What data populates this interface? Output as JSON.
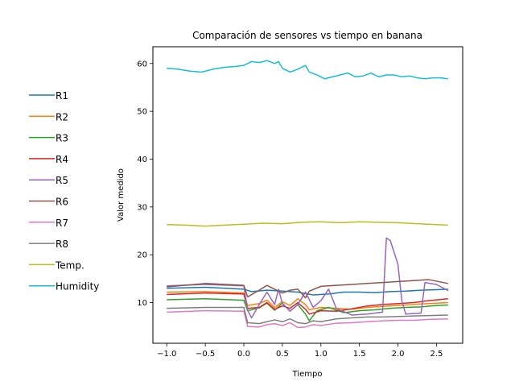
{
  "chart_data": {
    "type": "line",
    "title": "Comparación de sensores vs tiempo en banana",
    "xlabel": "Tiempo",
    "ylabel": "Valor medido",
    "xlim": [
      -1.18,
      2.84
    ],
    "ylim": [
      1.5,
      63.5
    ],
    "xticks": [
      -1.0,
      -0.5,
      0.0,
      0.5,
      1.0,
      1.5,
      2.0,
      2.5
    ],
    "xtick_labels": [
      "−1.0",
      "−0.5",
      "0.0",
      "0.5",
      "1.0",
      "1.5",
      "2.0",
      "2.5"
    ],
    "yticks": [
      10,
      20,
      30,
      40,
      50,
      60
    ],
    "ytick_labels": [
      "10",
      "20",
      "30",
      "40",
      "50",
      "60"
    ],
    "grid": false,
    "legend_position": "left-outside",
    "series": [
      {
        "name": "R1",
        "color": "#1f77b4",
        "x": [
          -1.0,
          -0.5,
          0.0,
          0.1,
          0.3,
          0.5,
          0.7,
          0.9,
          1.1,
          1.3,
          1.5,
          1.7,
          1.9,
          2.1,
          2.3,
          2.5,
          2.65
        ],
        "y": [
          13.0,
          13.2,
          12.8,
          12.3,
          12.6,
          12.4,
          12.2,
          11.6,
          11.8,
          12.2,
          12.2,
          12.1,
          12.3,
          12.4,
          12.6,
          12.7,
          12.8
        ]
      },
      {
        "name": "R2",
        "color": "#ff7f0e",
        "x": [
          -1.0,
          -0.5,
          0.0,
          0.05,
          0.2,
          0.3,
          0.4,
          0.5,
          0.6,
          0.7,
          0.8,
          0.85,
          1.0,
          1.2,
          1.4,
          1.6,
          1.8,
          2.0,
          2.2,
          2.4,
          2.65
        ],
        "y": [
          12.2,
          12.3,
          12.0,
          9.4,
          9.8,
          10.5,
          9.0,
          10.2,
          9.4,
          10.8,
          9.6,
          8.5,
          9.0,
          8.8,
          8.6,
          9.0,
          9.2,
          9.4,
          9.6,
          9.8,
          10.0
        ]
      },
      {
        "name": "R3",
        "color": "#2ca02c",
        "x": [
          -1.0,
          -0.5,
          0.0,
          0.05,
          0.2,
          0.3,
          0.4,
          0.5,
          0.6,
          0.7,
          0.8,
          0.85,
          0.95,
          1.1,
          1.3,
          1.5,
          1.7,
          1.9,
          2.1,
          2.3,
          2.5,
          2.65
        ],
        "y": [
          10.6,
          10.8,
          10.5,
          8.3,
          8.9,
          9.9,
          8.4,
          9.9,
          8.2,
          9.6,
          7.6,
          6.2,
          8.3,
          9.0,
          7.9,
          8.3,
          8.5,
          8.8,
          9.0,
          9.1,
          9.4,
          9.5
        ]
      },
      {
        "name": "R4",
        "color": "#d62728",
        "x": [
          -1.0,
          -0.5,
          0.0,
          0.05,
          0.2,
          0.3,
          0.4,
          0.5,
          0.6,
          0.7,
          0.8,
          0.85,
          1.0,
          1.2,
          1.4,
          1.6,
          1.8,
          2.0,
          2.2,
          2.4,
          2.65
        ],
        "y": [
          11.7,
          12.0,
          11.8,
          8.8,
          9.0,
          10.0,
          8.6,
          9.3,
          8.8,
          10.0,
          8.6,
          7.6,
          8.3,
          8.2,
          8.7,
          9.3,
          9.6,
          9.8,
          10.0,
          10.4,
          10.8
        ]
      },
      {
        "name": "R5",
        "color": "#9467bd",
        "x": [
          -1.0,
          -0.5,
          0.0,
          0.05,
          0.1,
          0.2,
          0.3,
          0.4,
          0.45,
          0.5,
          0.6,
          0.7,
          0.8,
          0.9,
          1.0,
          1.1,
          1.2,
          1.4,
          1.6,
          1.8,
          1.85,
          1.9,
          2.0,
          2.05,
          2.1,
          2.3,
          2.35,
          2.5,
          2.65
        ],
        "y": [
          13.5,
          13.8,
          13.5,
          8.4,
          6.8,
          9.6,
          12.2,
          9.6,
          12.8,
          9.8,
          8.2,
          9.6,
          12.2,
          9.0,
          10.4,
          12.8,
          8.8,
          7.4,
          7.6,
          8.0,
          23.5,
          23.0,
          18.0,
          10.4,
          7.6,
          7.8,
          14.2,
          13.8,
          12.5
        ]
      },
      {
        "name": "R6",
        "color": "#8c564b",
        "x": [
          -1.0,
          -0.5,
          0.0,
          0.05,
          0.2,
          0.3,
          0.4,
          0.5,
          0.6,
          0.7,
          0.8,
          0.85,
          1.0,
          1.2,
          1.4,
          1.6,
          1.8,
          2.0,
          2.2,
          2.4,
          2.65
        ],
        "y": [
          13.3,
          14.0,
          13.6,
          11.2,
          12.6,
          13.6,
          12.8,
          12.0,
          12.6,
          12.8,
          11.0,
          12.4,
          13.4,
          13.6,
          13.8,
          14.0,
          14.2,
          14.4,
          14.6,
          14.8,
          14.0
        ]
      },
      {
        "name": "R7",
        "color": "#e377c2",
        "x": [
          -1.0,
          -0.5,
          0.0,
          0.05,
          0.2,
          0.3,
          0.4,
          0.5,
          0.6,
          0.7,
          0.8,
          0.9,
          1.0,
          1.2,
          1.4,
          1.6,
          1.8,
          2.0,
          2.2,
          2.4,
          2.65
        ],
        "y": [
          8.0,
          8.3,
          8.2,
          5.0,
          4.9,
          5.4,
          5.6,
          5.2,
          5.8,
          4.8,
          4.9,
          5.4,
          5.2,
          5.7,
          5.8,
          6.0,
          6.2,
          6.3,
          6.3,
          6.5,
          6.6
        ]
      },
      {
        "name": "R8",
        "color": "#7f7f7f",
        "x": [
          -1.0,
          -0.5,
          0.0,
          0.05,
          0.2,
          0.3,
          0.4,
          0.5,
          0.6,
          0.7,
          0.8,
          0.9,
          1.0,
          1.2,
          1.4,
          1.6,
          1.8,
          2.0,
          2.2,
          2.4,
          2.65
        ],
        "y": [
          8.8,
          9.0,
          9.0,
          5.8,
          5.6,
          6.0,
          6.4,
          6.0,
          6.6,
          5.8,
          5.6,
          6.2,
          6.0,
          6.6,
          6.8,
          7.0,
          7.0,
          7.1,
          7.2,
          7.3,
          7.4
        ]
      },
      {
        "name": "Temp.",
        "color": "#bcbd22",
        "x": [
          -1.0,
          -0.75,
          -0.5,
          -0.25,
          0.0,
          0.25,
          0.5,
          0.75,
          1.0,
          1.25,
          1.5,
          1.75,
          2.0,
          2.25,
          2.5,
          2.65
        ],
        "y": [
          26.3,
          26.2,
          26.0,
          26.2,
          26.4,
          26.6,
          26.5,
          26.8,
          26.9,
          26.7,
          26.9,
          26.8,
          26.7,
          26.5,
          26.3,
          26.2
        ]
      },
      {
        "name": "Humidity",
        "color": "#17becf",
        "x": [
          -1.0,
          -0.85,
          -0.7,
          -0.55,
          -0.4,
          -0.25,
          -0.1,
          0.0,
          0.1,
          0.2,
          0.3,
          0.4,
          0.45,
          0.5,
          0.6,
          0.7,
          0.8,
          0.85,
          0.95,
          1.05,
          1.15,
          1.25,
          1.35,
          1.45,
          1.55,
          1.65,
          1.75,
          1.85,
          1.95,
          2.05,
          2.15,
          2.25,
          2.35,
          2.45,
          2.55,
          2.65
        ],
        "y": [
          59.0,
          58.8,
          58.4,
          58.2,
          58.8,
          59.2,
          59.4,
          59.6,
          60.4,
          60.2,
          60.6,
          60.0,
          60.4,
          59.0,
          58.2,
          58.8,
          59.6,
          58.2,
          57.6,
          56.8,
          57.2,
          57.6,
          58.0,
          57.2,
          57.4,
          58.0,
          57.2,
          57.6,
          57.6,
          57.2,
          57.4,
          57.0,
          56.8,
          57.0,
          57.0,
          56.8
        ]
      }
    ]
  }
}
